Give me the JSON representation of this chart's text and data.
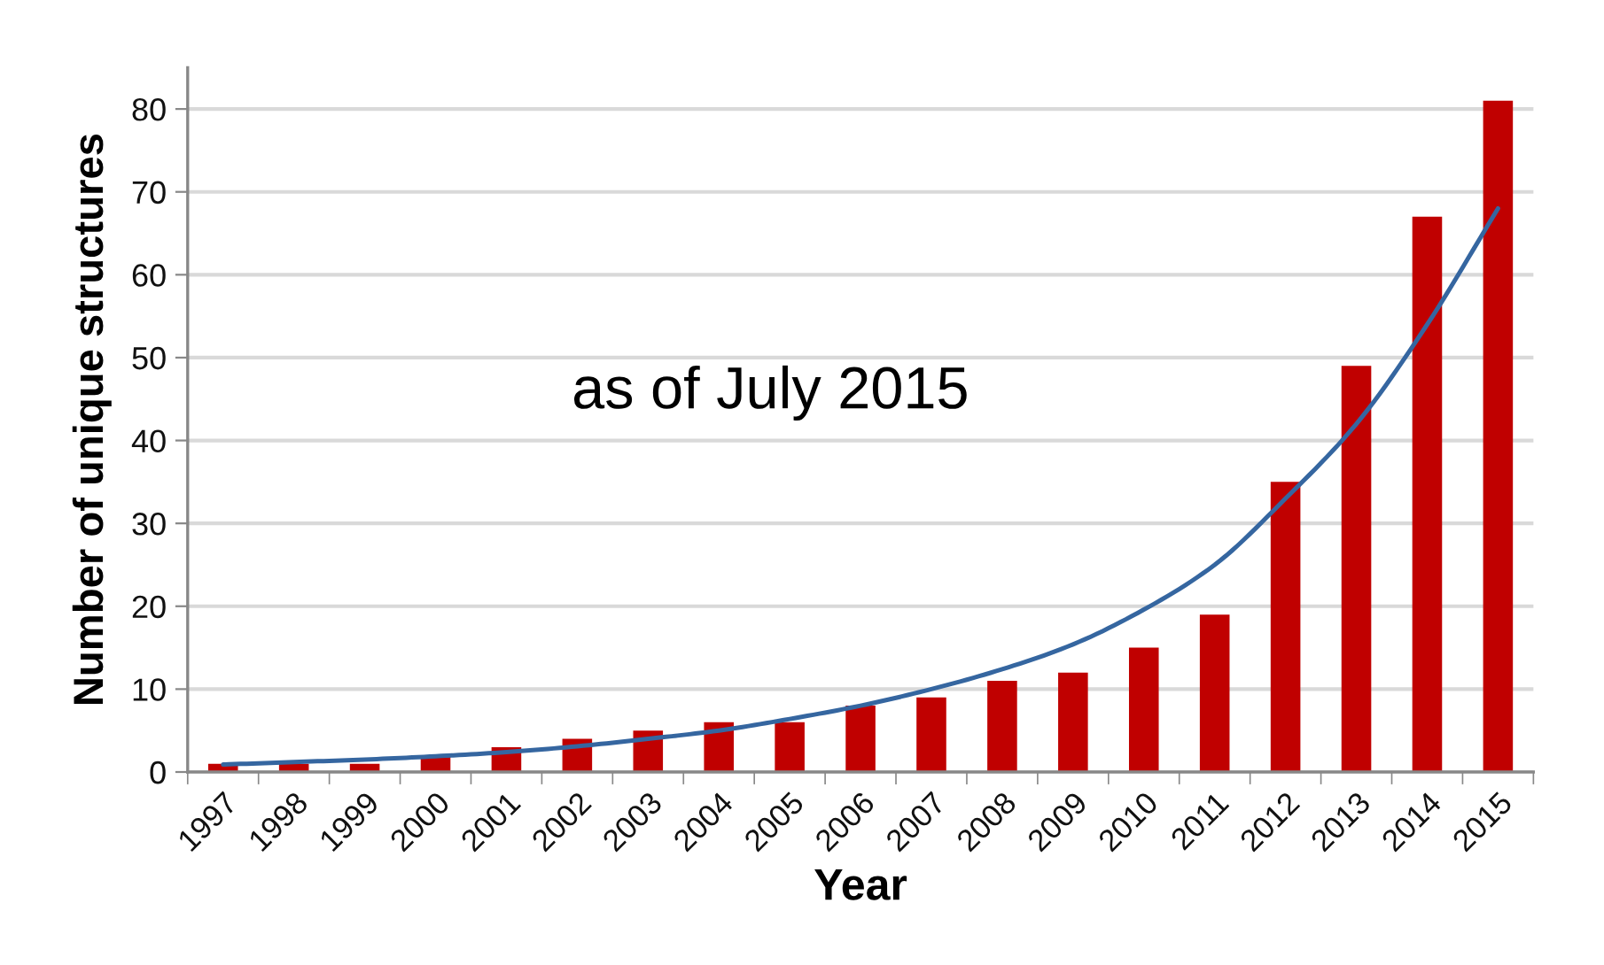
{
  "chart_data": {
    "type": "bar",
    "xlabel": "Year",
    "ylabel": "Number of unique structures",
    "annotations": [
      "as of July 2015"
    ],
    "categories": [
      "1997",
      "1998",
      "1999",
      "2000",
      "2001",
      "2002",
      "2003",
      "2004",
      "2005",
      "2006",
      "2007",
      "2008",
      "2009",
      "2010",
      "2011",
      "2012",
      "2013",
      "2014",
      "2015"
    ],
    "series": [
      {
        "color": "#c00000",
        "values": [
          1,
          1,
          1,
          2,
          3,
          4,
          5,
          6,
          6,
          8,
          9,
          11,
          12,
          15,
          19,
          35,
          49,
          67,
          81
        ]
      },
      {
        "type": "line",
        "color": "#3566a0",
        "values": [
          0.9,
          1.2,
          1.5,
          1.9,
          2.4,
          3.1,
          4.0,
          5.0,
          6.4,
          8.0,
          10,
          12.4,
          15.4,
          19.6,
          25,
          33,
          42,
          54,
          68
        ]
      }
    ],
    "ylim": [
      0,
      85
    ],
    "yticks": [
      0,
      10,
      20,
      30,
      40,
      50,
      60,
      70,
      80
    ],
    "grid": "y"
  }
}
